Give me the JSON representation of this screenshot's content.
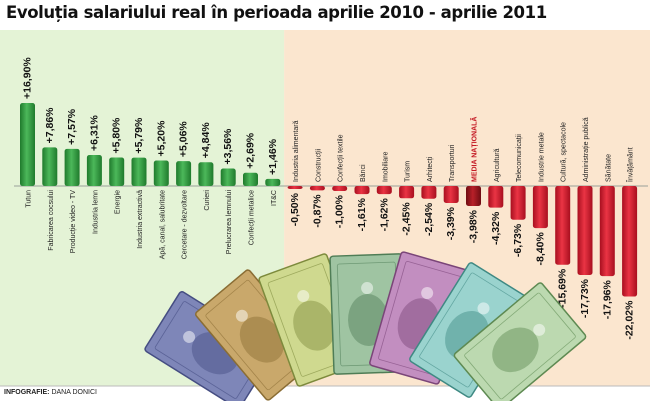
{
  "header": {
    "title": "Evoluția salariului real în perioada aprilie 2010 - aprilie 2011"
  },
  "footer": {
    "credit_label": "INFOGRAFIE:",
    "credit_name": "DANA DONICI"
  },
  "colors": {
    "positive": "#2e9b3f",
    "negative": "#d3162a",
    "national": "#a3151c",
    "positive_bg": "#e4f3d6",
    "negative_bg": "#fbe6cf"
  },
  "chart_data": {
    "type": "bar",
    "title": "Evoluția salariului real în perioada aprilie 2010 - aprilie 2011",
    "categories": [
      "Tutun",
      "Fabricarea cocsului",
      "Producție video - TV",
      "Industria lemn",
      "Energie",
      "Industria extractivă",
      "Apă, canal, salubritate",
      "Cercetare - dezvoltare",
      "Curieri",
      "Prelucrarea lemnului",
      "Confecții metalice",
      "IT&C",
      "Industria alimentară",
      "Construcții",
      "Confecții textile",
      "Bănci",
      "Imobiliare",
      "Turism",
      "Arhitecți",
      "Transporturi",
      "MEDIA NAȚIONALĂ",
      "Agricultură",
      "Telecomunicații",
      "Industrie metale",
      "Cultură, spectacole",
      "Administrație publică",
      "Sănătate",
      "Învățământ"
    ],
    "values": [
      16.9,
      7.86,
      7.57,
      6.31,
      5.8,
      5.79,
      5.2,
      5.06,
      4.84,
      3.56,
      2.69,
      1.46,
      -0.5,
      -0.87,
      -1.0,
      -1.61,
      -1.62,
      -2.45,
      -2.54,
      -3.39,
      -3.98,
      -4.32,
      -6.73,
      -8.4,
      -15.69,
      -17.73,
      -17.96,
      -22.02
    ],
    "value_labels": [
      "+16,90%",
      "+7,86%",
      "+7,57%",
      "+6,31%",
      "+5,80%",
      "+5,79%",
      "+5,20%",
      "+5,06%",
      "+4,84%",
      "+3,56%",
      "+2,69%",
      "+1,46%",
      "-0,50%",
      "-0,87%",
      "-1,00%",
      "-1,61%",
      "-1,62%",
      "-2,45%",
      "-2,54%",
      "-3,39%",
      "-3,98%",
      "-4,32%",
      "-6,73%",
      "-8,40%",
      "-15,69%",
      "-17,73%",
      "-17,96%",
      "-22,02%"
    ],
    "highlight": "MEDIA NAȚIONALĂ",
    "ylim": [
      -22.02,
      16.9
    ],
    "grid": false
  }
}
